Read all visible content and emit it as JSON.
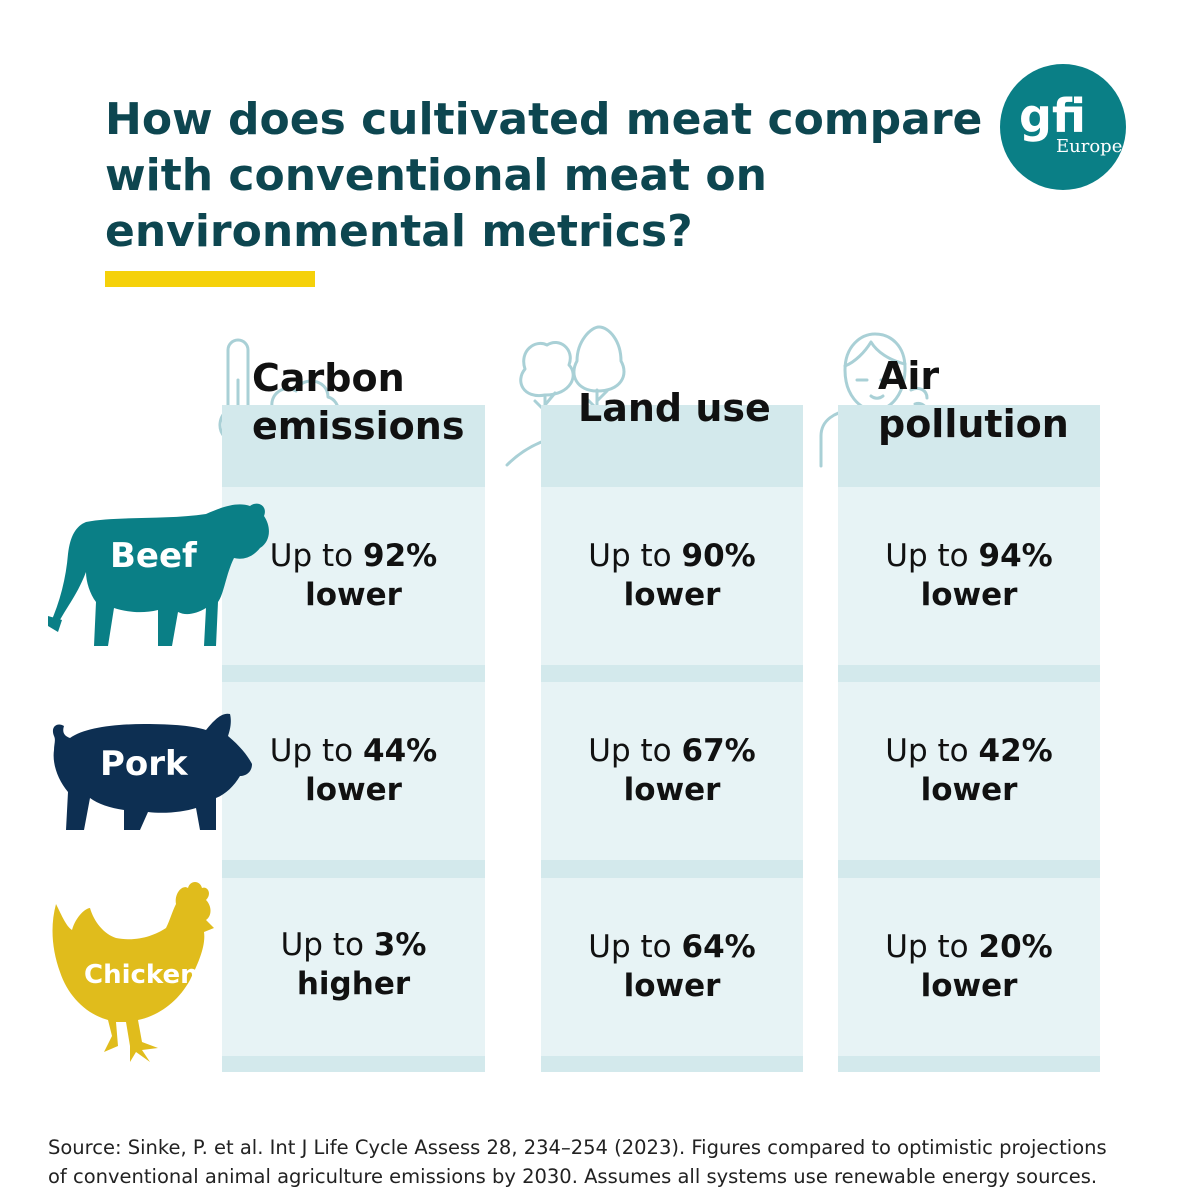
{
  "title": {
    "lines": [
      "How does cultivated meat compare",
      "with conventional meat on",
      "environmental metrics?"
    ]
  },
  "logo": {
    "mark": "gfi",
    "sub": "Europe",
    "color": "#0a7f86"
  },
  "columns": [
    {
      "id": "carbon",
      "header_lines": [
        "Carbon",
        "emissions"
      ],
      "icon": "thermometer-smoke-icon"
    },
    {
      "id": "land",
      "header_lines": [
        "Land use"
      ],
      "icon": "trees-hill-icon"
    },
    {
      "id": "air",
      "header_lines": [
        "Air",
        "pollution"
      ],
      "icon": "person-coughing-icon"
    }
  ],
  "rows": [
    {
      "animal": "Beef",
      "icon": "cow-icon",
      "color": "#0a7f86",
      "cells": [
        {
          "prefix": "Up to ",
          "value": "92%",
          "direction": "lower"
        },
        {
          "prefix": "Up to ",
          "value": "90%",
          "direction": "lower"
        },
        {
          "prefix": "Up to ",
          "value": "94%",
          "direction": "lower"
        }
      ]
    },
    {
      "animal": "Pork",
      "icon": "pig-icon",
      "color": "#0d2f52",
      "cells": [
        {
          "prefix": "Up to ",
          "value": "44%",
          "direction": "lower"
        },
        {
          "prefix": "Up to ",
          "value": "67%",
          "direction": "lower"
        },
        {
          "prefix": "Up to ",
          "value": "42%",
          "direction": "lower"
        }
      ]
    },
    {
      "animal": "Chicken",
      "icon": "chicken-icon",
      "color": "#e0bc1c",
      "cells": [
        {
          "prefix": "Up to ",
          "value": "3%",
          "direction": "higher"
        },
        {
          "prefix": "Up to ",
          "value": "64%",
          "direction": "lower"
        },
        {
          "prefix": "Up to ",
          "value": "20%",
          "direction": "lower"
        }
      ]
    }
  ],
  "source": {
    "lines": [
      "Source: Sinke, P. et al. Int J Life Cycle Assess 28, 234–254 (2023). Figures compared to optimistic projections",
      "of conventional animal agriculture emissions by 2030. Assumes all systems use renewable energy sources."
    ]
  },
  "colors": {
    "title": "#0d4650",
    "accent_underline": "#f5d10a",
    "column_bg": "#d3e9ec",
    "cell_bg": "#e7f3f5",
    "icon_stroke": "#a9d0d6"
  }
}
